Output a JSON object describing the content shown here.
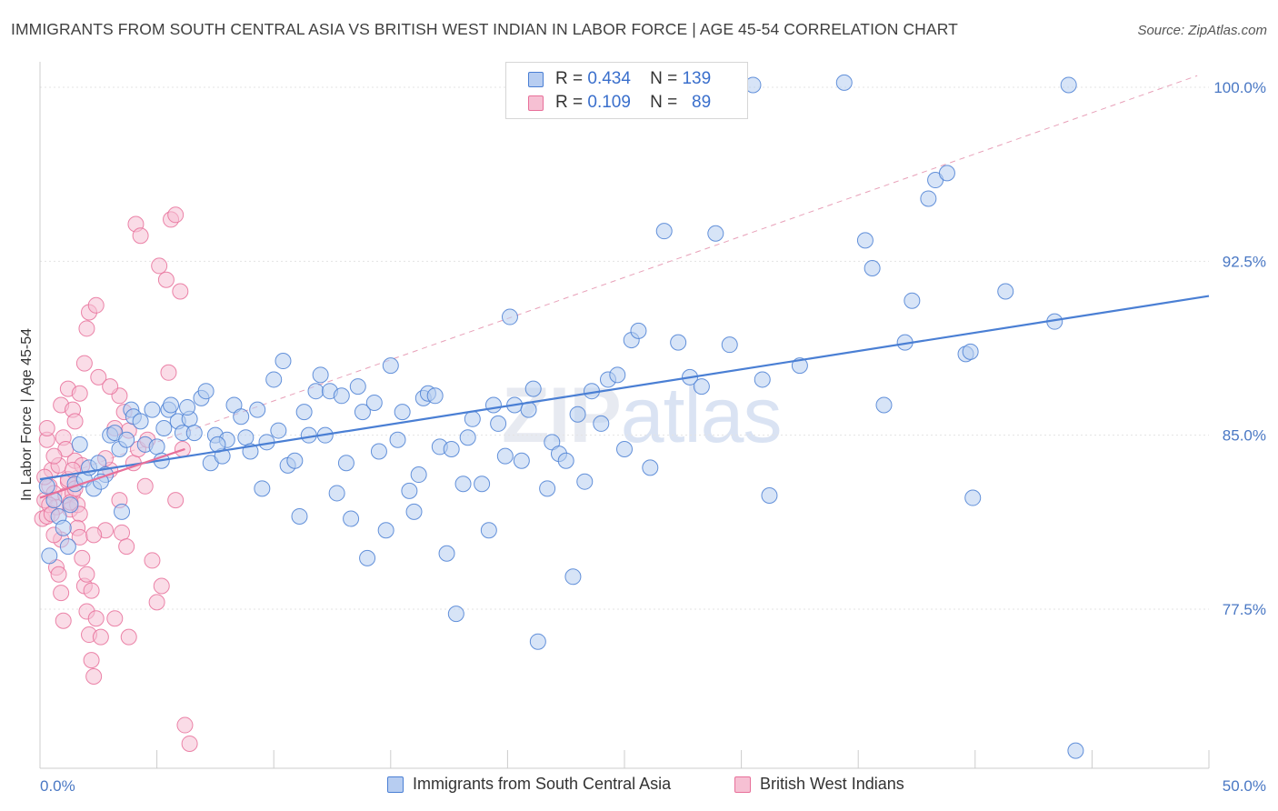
{
  "title": "IMMIGRANTS FROM SOUTH CENTRAL ASIA VS BRITISH WEST INDIAN IN LABOR FORCE | AGE 45-54 CORRELATION CHART",
  "source": "Source: ZipAtlas.com",
  "watermark": {
    "zip": "ZIP",
    "atlas": "atlas"
  },
  "legend": {
    "rows": [
      {
        "r_label": "R =",
        "r_value": "0.434",
        "n_label": "N =",
        "n_value": "139"
      },
      {
        "r_label": "R =",
        "r_value": "0.109",
        "n_label": "N =",
        "n_value": "89"
      }
    ]
  },
  "chart_data": {
    "type": "scatter",
    "title": "IMMIGRANTS FROM SOUTH CENTRAL ASIA VS BRITISH WEST INDIAN IN LABOR FORCE | AGE 45-54 CORRELATION CHART",
    "xlabel": "",
    "ylabel": "In Labor Force | Age 45-54",
    "xlim": [
      0,
      50
    ],
    "ylim": [
      70.5,
      100.5
    ],
    "x_tick_labels": [
      "0.0%",
      "50.0%"
    ],
    "y_ticks": [
      77.5,
      85.0,
      92.5,
      100.0
    ],
    "y_tick_labels": [
      "77.5%",
      "85.0%",
      "92.5%",
      "100.0%"
    ],
    "grid": true,
    "legend_position": "top-center",
    "colors": {
      "blue": "#4a7fd4",
      "blue_fill": "#b7cdf1",
      "pink": "#e8709a",
      "pink_fill": "#f6c0d3",
      "reference": "#e8a0b8"
    },
    "reference_line": {
      "x": [
        0.2,
        49.5
      ],
      "y": [
        83.0,
        100.5
      ]
    },
    "series": [
      {
        "name": "Immigrants from South Central Asia",
        "color": "#4a7fd4",
        "trend": {
          "x": [
            0,
            50
          ],
          "y": [
            83.1,
            91.0
          ]
        },
        "points": [
          [
            0.3,
            82.8
          ],
          [
            0.6,
            82.2
          ],
          [
            0.8,
            81.5
          ],
          [
            1.0,
            81.0
          ],
          [
            1.2,
            80.2
          ],
          [
            1.5,
            82.9
          ],
          [
            1.7,
            84.6
          ],
          [
            1.9,
            83.1
          ],
          [
            2.1,
            83.6
          ],
          [
            2.3,
            82.7
          ],
          [
            2.5,
            83.8
          ],
          [
            2.8,
            83.3
          ],
          [
            3.0,
            85.0
          ],
          [
            3.2,
            85.1
          ],
          [
            3.4,
            84.4
          ],
          [
            3.5,
            81.7
          ],
          [
            3.7,
            84.8
          ],
          [
            3.9,
            86.1
          ],
          [
            4.0,
            85.8
          ],
          [
            4.3,
            85.6
          ],
          [
            4.5,
            84.6
          ],
          [
            4.8,
            86.1
          ],
          [
            5.0,
            84.5
          ],
          [
            5.3,
            85.3
          ],
          [
            5.5,
            86.1
          ],
          [
            5.6,
            86.3
          ],
          [
            5.9,
            85.6
          ],
          [
            6.1,
            85.1
          ],
          [
            6.4,
            85.7
          ],
          [
            6.6,
            85.1
          ],
          [
            6.9,
            86.6
          ],
          [
            7.1,
            86.9
          ],
          [
            7.3,
            83.8
          ],
          [
            7.5,
            85.0
          ],
          [
            7.8,
            84.1
          ],
          [
            8.0,
            84.8
          ],
          [
            8.3,
            86.3
          ],
          [
            8.6,
            85.8
          ],
          [
            8.8,
            84.9
          ],
          [
            9.0,
            84.3
          ],
          [
            9.3,
            86.1
          ],
          [
            9.5,
            82.7
          ],
          [
            9.7,
            84.7
          ],
          [
            10.0,
            87.4
          ],
          [
            10.2,
            85.2
          ],
          [
            10.4,
            88.2
          ],
          [
            10.6,
            83.7
          ],
          [
            10.9,
            83.9
          ],
          [
            11.1,
            81.5
          ],
          [
            11.3,
            86.0
          ],
          [
            11.5,
            85.0
          ],
          [
            11.8,
            86.9
          ],
          [
            12.0,
            87.6
          ],
          [
            12.2,
            85.0
          ],
          [
            12.4,
            86.9
          ],
          [
            12.7,
            82.5
          ],
          [
            12.9,
            86.7
          ],
          [
            13.1,
            83.8
          ],
          [
            13.3,
            81.4
          ],
          [
            13.6,
            87.1
          ],
          [
            13.8,
            86.0
          ],
          [
            14.0,
            79.7
          ],
          [
            14.3,
            86.4
          ],
          [
            14.5,
            84.3
          ],
          [
            14.8,
            80.9
          ],
          [
            15.0,
            88.0
          ],
          [
            15.3,
            84.8
          ],
          [
            15.5,
            86.0
          ],
          [
            15.8,
            82.6
          ],
          [
            16.0,
            81.7
          ],
          [
            16.2,
            83.3
          ],
          [
            16.4,
            86.6
          ],
          [
            16.6,
            86.8
          ],
          [
            16.9,
            86.7
          ],
          [
            17.1,
            84.5
          ],
          [
            17.4,
            79.9
          ],
          [
            17.6,
            84.4
          ],
          [
            17.8,
            77.3
          ],
          [
            18.1,
            82.9
          ],
          [
            18.3,
            84.9
          ],
          [
            18.5,
            85.7
          ],
          [
            18.9,
            82.9
          ],
          [
            19.2,
            80.9
          ],
          [
            19.4,
            86.3
          ],
          [
            19.6,
            85.5
          ],
          [
            19.9,
            84.1
          ],
          [
            20.1,
            90.1
          ],
          [
            20.3,
            86.3
          ],
          [
            20.6,
            83.9
          ],
          [
            20.9,
            86.1
          ],
          [
            21.1,
            87.0
          ],
          [
            21.3,
            76.1
          ],
          [
            21.7,
            82.7
          ],
          [
            21.9,
            84.7
          ],
          [
            22.2,
            84.2
          ],
          [
            22.5,
            83.9
          ],
          [
            22.8,
            78.9
          ],
          [
            23.0,
            85.9
          ],
          [
            23.3,
            83.0
          ],
          [
            23.6,
            86.9
          ],
          [
            24.0,
            85.5
          ],
          [
            24.3,
            87.4
          ],
          [
            24.7,
            87.6
          ],
          [
            25.0,
            84.4
          ],
          [
            25.3,
            89.1
          ],
          [
            25.6,
            89.5
          ],
          [
            26.1,
            83.6
          ],
          [
            26.7,
            93.8
          ],
          [
            27.3,
            89.0
          ],
          [
            27.8,
            87.5
          ],
          [
            28.3,
            87.1
          ],
          [
            28.9,
            93.7
          ],
          [
            29.5,
            88.9
          ],
          [
            30.5,
            100.1
          ],
          [
            30.9,
            87.4
          ],
          [
            31.2,
            82.4
          ],
          [
            32.5,
            88.0
          ],
          [
            34.4,
            100.2
          ],
          [
            35.3,
            93.4
          ],
          [
            35.6,
            92.2
          ],
          [
            36.1,
            86.3
          ],
          [
            37.0,
            89.0
          ],
          [
            37.3,
            90.8
          ],
          [
            38.0,
            95.2
          ],
          [
            38.3,
            96.0
          ],
          [
            38.8,
            96.3
          ],
          [
            39.6,
            88.5
          ],
          [
            39.8,
            88.6
          ],
          [
            39.9,
            82.3
          ],
          [
            41.3,
            91.2
          ],
          [
            43.4,
            89.9
          ],
          [
            44.0,
            100.1
          ],
          [
            44.3,
            71.4
          ],
          [
            0.4,
            79.8
          ],
          [
            1.3,
            82.0
          ],
          [
            2.6,
            83.0
          ],
          [
            5.2,
            83.9
          ],
          [
            6.3,
            86.2
          ],
          [
            7.6,
            84.6
          ]
        ]
      },
      {
        "name": "British West Indians",
        "color": "#e8709a",
        "trend": {
          "x": [
            0,
            6.2
          ],
          "y": [
            82.3,
            84.4
          ]
        },
        "points": [
          [
            0.1,
            81.4
          ],
          [
            0.2,
            82.2
          ],
          [
            0.3,
            81.5
          ],
          [
            0.4,
            82.8
          ],
          [
            0.5,
            83.5
          ],
          [
            0.6,
            82.5
          ],
          [
            0.7,
            81.9
          ],
          [
            0.8,
            83.7
          ],
          [
            0.9,
            80.5
          ],
          [
            1.0,
            84.9
          ],
          [
            1.1,
            82.4
          ],
          [
            1.2,
            83.0
          ],
          [
            1.3,
            81.8
          ],
          [
            1.4,
            82.5
          ],
          [
            1.5,
            83.9
          ],
          [
            1.6,
            82.0
          ],
          [
            1.7,
            81.6
          ],
          [
            1.8,
            83.7
          ],
          [
            0.2,
            83.2
          ],
          [
            0.3,
            84.8
          ],
          [
            0.4,
            82.0
          ],
          [
            0.5,
            81.6
          ],
          [
            0.6,
            80.7
          ],
          [
            0.7,
            79.3
          ],
          [
            0.8,
            79.0
          ],
          [
            0.9,
            78.2
          ],
          [
            1.0,
            77.0
          ],
          [
            1.1,
            84.4
          ],
          [
            1.2,
            83.1
          ],
          [
            1.3,
            82.1
          ],
          [
            1.4,
            83.5
          ],
          [
            1.5,
            82.7
          ],
          [
            1.6,
            81.0
          ],
          [
            1.7,
            80.6
          ],
          [
            1.8,
            79.7
          ],
          [
            1.9,
            78.5
          ],
          [
            2.0,
            77.4
          ],
          [
            2.1,
            76.4
          ],
          [
            2.2,
            75.3
          ],
          [
            2.3,
            74.6
          ],
          [
            0.3,
            85.3
          ],
          [
            0.6,
            84.1
          ],
          [
            0.9,
            86.3
          ],
          [
            1.2,
            87.0
          ],
          [
            1.4,
            86.1
          ],
          [
            1.7,
            86.8
          ],
          [
            1.9,
            88.1
          ],
          [
            2.0,
            79.0
          ],
          [
            2.2,
            78.3
          ],
          [
            2.4,
            77.1
          ],
          [
            2.6,
            76.3
          ],
          [
            2.8,
            80.9
          ],
          [
            3.0,
            83.5
          ],
          [
            3.2,
            85.3
          ],
          [
            3.4,
            86.7
          ],
          [
            3.6,
            86.0
          ],
          [
            3.8,
            85.2
          ],
          [
            4.0,
            83.8
          ],
          [
            4.2,
            84.4
          ],
          [
            4.5,
            82.8
          ],
          [
            4.8,
            79.6
          ],
          [
            5.0,
            77.8
          ],
          [
            5.2,
            78.5
          ],
          [
            5.5,
            87.7
          ],
          [
            5.8,
            82.2
          ],
          [
            6.1,
            84.4
          ],
          [
            2.0,
            89.6
          ],
          [
            2.1,
            90.3
          ],
          [
            2.4,
            90.6
          ],
          [
            2.5,
            87.5
          ],
          [
            3.0,
            87.1
          ],
          [
            3.2,
            77.1
          ],
          [
            3.4,
            82.2
          ],
          [
            3.5,
            80.8
          ],
          [
            3.8,
            76.3
          ],
          [
            4.1,
            94.1
          ],
          [
            4.3,
            93.6
          ],
          [
            5.1,
            92.3
          ],
          [
            5.4,
            91.7
          ],
          [
            5.6,
            94.3
          ],
          [
            5.8,
            94.5
          ],
          [
            6.0,
            91.2
          ],
          [
            6.2,
            72.5
          ],
          [
            6.4,
            71.7
          ],
          [
            1.5,
            85.6
          ],
          [
            2.8,
            84.0
          ],
          [
            3.7,
            80.2
          ],
          [
            4.6,
            84.8
          ],
          [
            2.3,
            80.7
          ]
        ]
      }
    ]
  },
  "bottom_legend": [
    {
      "label": "Immigrants from South Central Asia"
    },
    {
      "label": "British West Indians"
    }
  ]
}
